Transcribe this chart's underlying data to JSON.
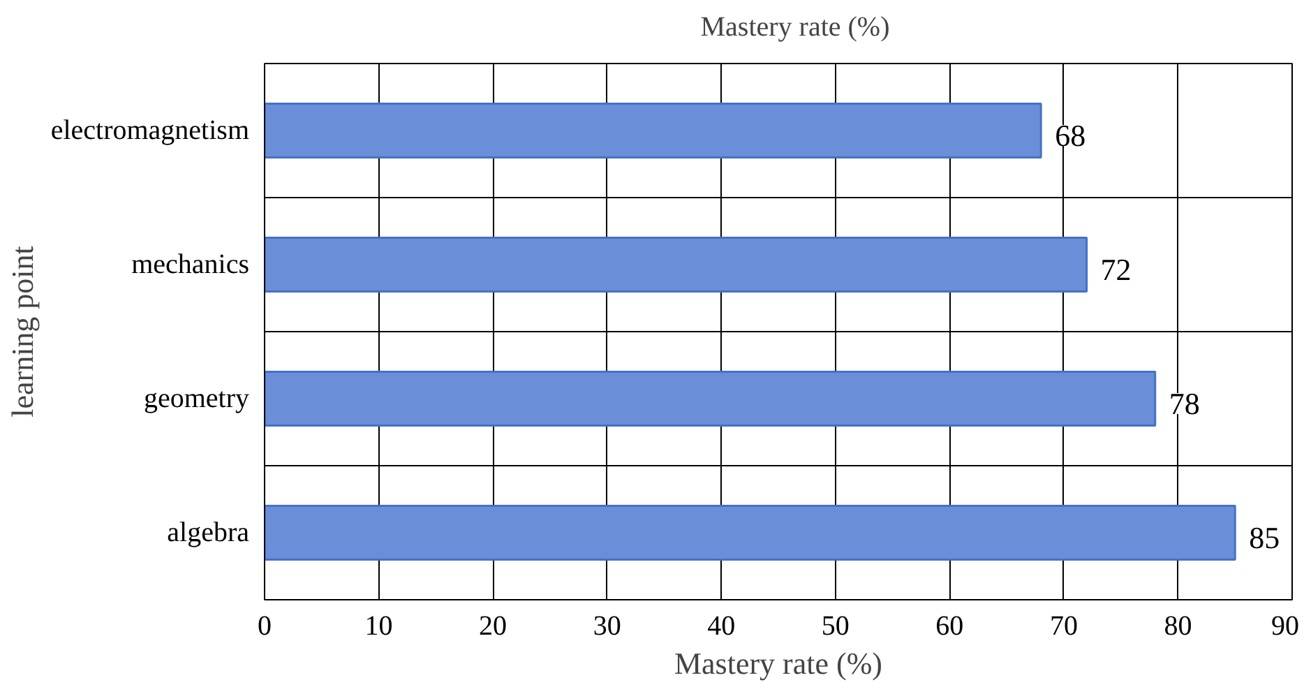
{
  "chart_data": {
    "type": "bar",
    "orientation": "horizontal",
    "categories": [
      "electromagnetism",
      "mechanics",
      "geometry",
      "algebra"
    ],
    "series": [
      {
        "name": "Mastery rate (%)",
        "color": "#6a8ed8",
        "values": [
          68,
          72,
          78,
          85
        ]
      }
    ],
    "xlabel": "Mastery rate (%)",
    "ylabel": "learning point",
    "xlim": [
      0,
      90
    ],
    "xticks": [
      0,
      10,
      20,
      30,
      40,
      50,
      60,
      70,
      80,
      90
    ],
    "grid": true,
    "legend": "top",
    "data_labels": true
  }
}
